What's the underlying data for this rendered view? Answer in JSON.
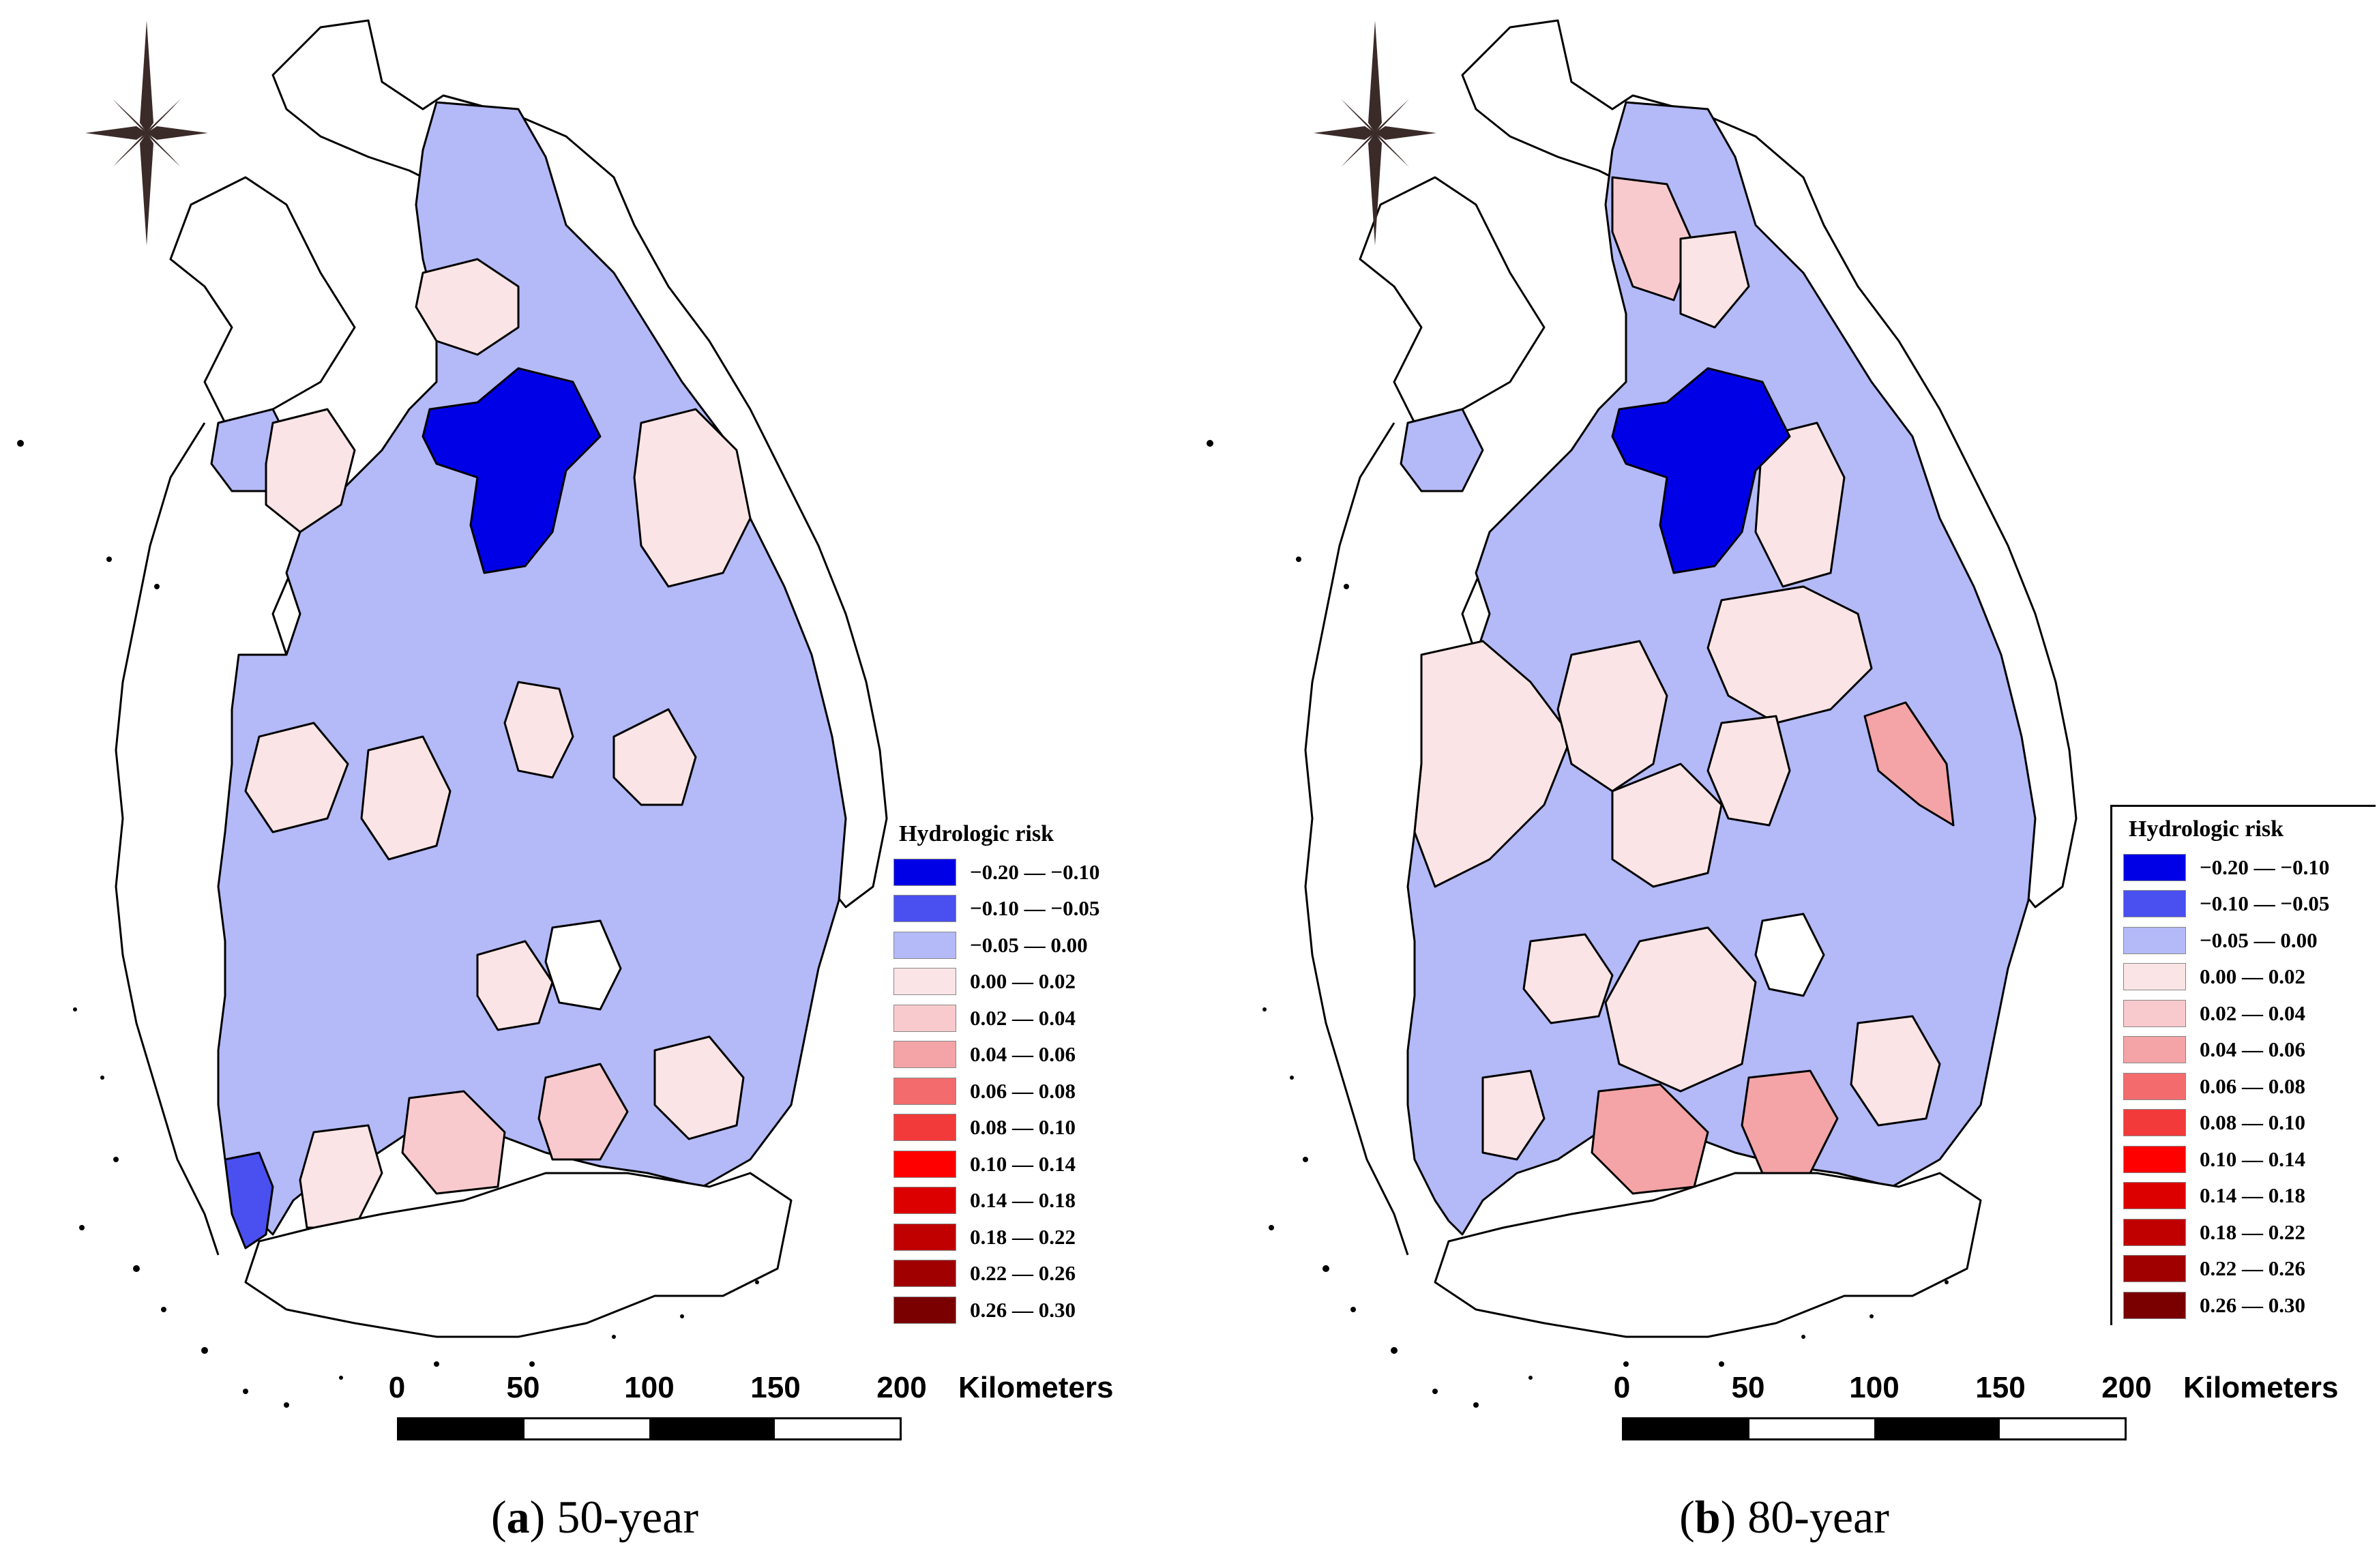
{
  "figure": {
    "panels": [
      {
        "id": "a",
        "caption_letter": "a",
        "caption_text": " 50-year",
        "legend_title": "Hydrologic risk"
      },
      {
        "id": "b",
        "caption_letter": "b",
        "caption_text": " 80-year",
        "legend_title": "Hydrologic risk"
      }
    ],
    "legend": {
      "title": "Hydrologic risk",
      "classes": [
        {
          "label": "−0.20 — −0.10",
          "color": "#0000e6"
        },
        {
          "label": "−0.10 — −0.05",
          "color": "#4a50f0"
        },
        {
          "label": "−0.05 —   0.00",
          "color": "#b4b9f8"
        },
        {
          "label": "0.00 — 0.02",
          "color": "#fbe4e6"
        },
        {
          "label": "0.02 — 0.04",
          "color": "#f9cacd"
        },
        {
          "label": "0.04 — 0.06",
          "color": "#f4a4a6"
        },
        {
          "label": "0.06 — 0.08",
          "color": "#f36b6d"
        },
        {
          "label": "0.08 — 0.10",
          "color": "#f23a3a"
        },
        {
          "label": "0.10 — 0.14",
          "color": "#ff0000"
        },
        {
          "label": "0.14 — 0.18",
          "color": "#dd0000"
        },
        {
          "label": "0.18 — 0.22",
          "color": "#c00000"
        },
        {
          "label": "0.22 — 0.26",
          "color": "#a00000"
        },
        {
          "label": "0.26 — 0.30",
          "color": "#7a0000"
        }
      ]
    },
    "scale_bar": {
      "ticks": [
        "0",
        "50",
        "100",
        "150",
        "200"
      ],
      "unit": "Kilometers"
    },
    "north_arrow_icon": "compass-rose-icon"
  }
}
